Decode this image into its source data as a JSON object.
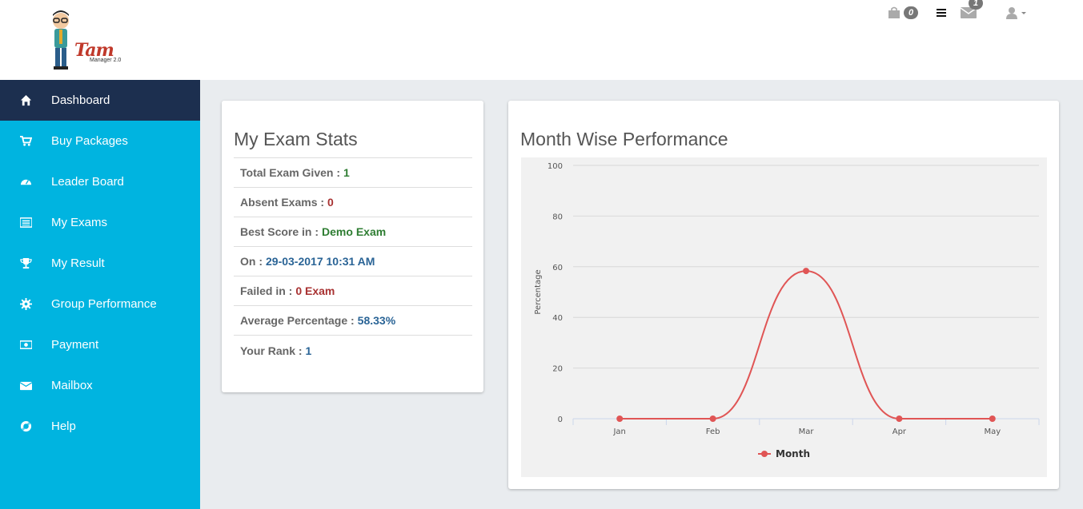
{
  "header": {
    "logo_text": "Tam",
    "logo_subtext": "Manager 2.0",
    "cart_count": "0",
    "mail_count": "1"
  },
  "sidebar": {
    "items": [
      {
        "label": "Dashboard",
        "icon": "home-icon",
        "active": true
      },
      {
        "label": "Buy Packages",
        "icon": "cart-icon"
      },
      {
        "label": "Leader Board",
        "icon": "dashboard-gauge-icon"
      },
      {
        "label": "My Exams",
        "icon": "list-icon"
      },
      {
        "label": "My Result",
        "icon": "trophy-icon"
      },
      {
        "label": "Group Performance",
        "icon": "gear-icon"
      },
      {
        "label": "Payment",
        "icon": "money-icon"
      },
      {
        "label": "Mailbox",
        "icon": "envelope-icon"
      },
      {
        "label": "Help",
        "icon": "life-ring-icon"
      }
    ]
  },
  "stats": {
    "title": "My Exam Stats",
    "rows": [
      {
        "label": "Total Exam Given : ",
        "value": "1"
      },
      {
        "label": "Absent Exams : ",
        "value": "0"
      },
      {
        "label": "Best Score in : ",
        "value": "Demo Exam"
      },
      {
        "label": "On : ",
        "value": "29-03-2017 10:31 AM"
      },
      {
        "label": "Failed in : ",
        "value": "0 Exam"
      },
      {
        "label": "Average Percentage : ",
        "value": "58.33%"
      },
      {
        "label": "Your Rank : ",
        "value": "1"
      }
    ]
  },
  "performance": {
    "title": "Month Wise Performance"
  },
  "chart_data": {
    "type": "line",
    "categories": [
      "Jan",
      "Feb",
      "Mar",
      "Apr",
      "May"
    ],
    "series": [
      {
        "name": "Month",
        "values": [
          0,
          0,
          58.33,
          0,
          0
        ],
        "color": "#e05555"
      }
    ],
    "title": "",
    "xlabel": "",
    "ylabel": "Percentage",
    "ylim": [
      0,
      100
    ],
    "yticks": [
      0,
      20,
      40,
      60,
      80,
      100
    ],
    "grid": true,
    "legend": "bottom-center"
  }
}
